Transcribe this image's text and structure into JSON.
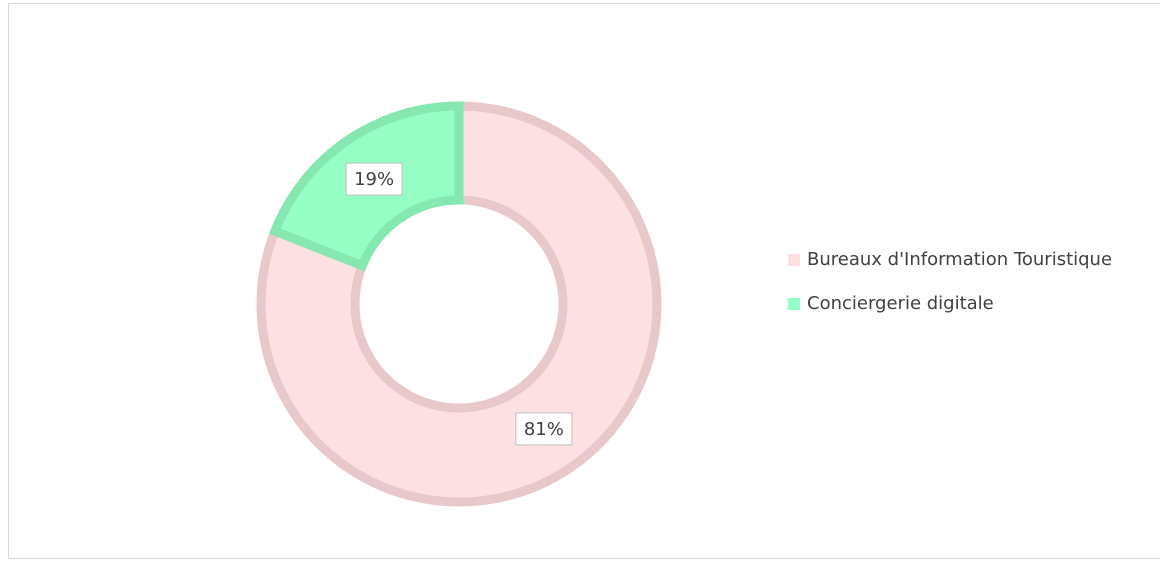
{
  "chart_data": {
    "type": "donut",
    "categories": [
      "Bureaux d'Information Touristique",
      "Conciergerie digitale"
    ],
    "values": [
      81,
      19
    ],
    "value_labels": [
      "81%",
      "19%"
    ],
    "colors": [
      "#fde0e2",
      "#94fec4"
    ],
    "edge_colors": [
      "#e8c8c8",
      "#84e8b0"
    ],
    "legend": "right"
  }
}
